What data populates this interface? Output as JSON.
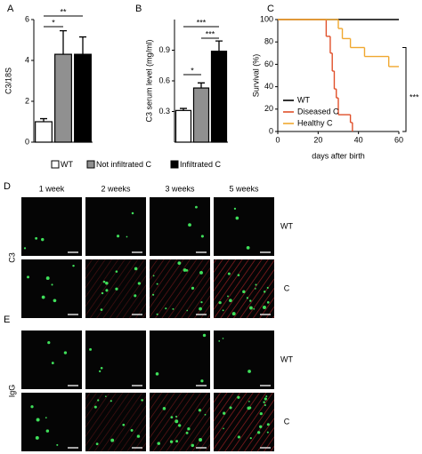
{
  "chart_data": [
    {
      "type": "bar",
      "title": "A",
      "y_label": "C3/18S",
      "categories": [
        "WT",
        "Not infiltrated C",
        "Infiltrated C"
      ],
      "values": [
        1.0,
        4.3,
        4.3
      ],
      "errors": [
        0.15,
        1.15,
        0.85
      ],
      "colors": [
        "#ffffff",
        "#909090",
        "#000000"
      ],
      "ylim": [
        0,
        6
      ],
      "yticks": [
        0,
        2,
        4,
        6
      ],
      "annotations": [
        "*",
        "**"
      ]
    },
    {
      "type": "bar",
      "title": "B",
      "y_label": "C3 serum level (mg/ml)",
      "categories": [
        "WT",
        "Not infiltrated C",
        "Infiltrated C"
      ],
      "values": [
        0.31,
        0.53,
        0.89
      ],
      "errors": [
        0.02,
        0.05,
        0.1
      ],
      "colors": [
        "#ffffff",
        "#909090",
        "#000000"
      ],
      "ylim": [
        0,
        1.2
      ],
      "yticks": [
        0.3,
        0.6,
        0.9
      ],
      "annotations": [
        "*",
        "***",
        "***"
      ]
    },
    {
      "type": "line",
      "step": true,
      "title": "C",
      "y_label": "Survival (%)",
      "x_label": "days after birth",
      "series": [
        {
          "name": "WT",
          "color": "#000000",
          "x": [
            0,
            60
          ],
          "values": [
            100,
            100
          ]
        },
        {
          "name": "Diseased C",
          "color": "#e0502a",
          "x": [
            0,
            24,
            26,
            27,
            28,
            29,
            30,
            36,
            37
          ],
          "values": [
            100,
            85,
            70,
            54,
            38,
            30,
            15,
            8,
            0
          ]
        },
        {
          "name": "Healthy C",
          "color": "#f0a830",
          "x": [
            0,
            30,
            32,
            36,
            43,
            55,
            60
          ],
          "values": [
            100,
            92,
            83,
            75,
            67,
            58,
            58
          ]
        }
      ],
      "xlim": [
        0,
        60
      ],
      "xticks": [
        0,
        20,
        40,
        60
      ],
      "ylim": [
        0,
        100
      ],
      "yticks": [
        0,
        20,
        40,
        60,
        80,
        100
      ],
      "annotations": [
        "***"
      ]
    }
  ],
  "microscopy": {
    "columns": [
      "1 week",
      "2 weeks",
      "3 weeks",
      "5 weeks"
    ],
    "panels": [
      {
        "letter": "D",
        "stain": "C3",
        "rows": [
          "WT",
          "C"
        ]
      },
      {
        "letter": "E",
        "stain": "IgG",
        "rows": [
          "WT",
          "C"
        ]
      }
    ]
  }
}
